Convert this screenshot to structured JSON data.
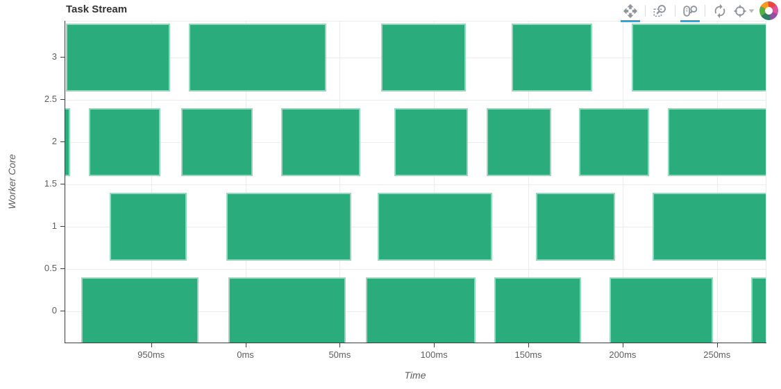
{
  "header": {
    "title": "Task Stream"
  },
  "toolbar": {
    "active_color": "#29a8e1",
    "icon_color": "#8e9499",
    "tools": [
      {
        "id": "pan",
        "label": "Pan",
        "active": true
      },
      {
        "id": "box-zoom",
        "label": "Box Zoom",
        "active": false
      },
      {
        "id": "wheel-zoom",
        "label": "Wheel Zoom",
        "active": true
      },
      {
        "id": "reset",
        "label": "Reset",
        "active": false
      },
      {
        "id": "hover",
        "label": "Hover",
        "active": false,
        "has_dropdown": true
      }
    ],
    "logo": "bokeh-logo"
  },
  "chart_data": {
    "type": "bar",
    "title": "Task Stream",
    "xlabel": "Time",
    "ylabel": "Worker Core",
    "grid": true,
    "bar_color": "#2bac7c",
    "bar_height_units": 0.8,
    "x_range_ms": [
      -96,
      277
    ],
    "y_range": [
      -0.38,
      3.43
    ],
    "x_ticks": [
      {
        "value": -50,
        "label": "950ms"
      },
      {
        "value": 0,
        "label": "0ms"
      },
      {
        "value": 50,
        "label": "50ms"
      },
      {
        "value": 100,
        "label": "100ms"
      },
      {
        "value": 150,
        "label": "150ms"
      },
      {
        "value": 200,
        "label": "200ms"
      },
      {
        "value": 250,
        "label": "250ms"
      }
    ],
    "y_ticks": [
      {
        "value": 0,
        "label": "0"
      },
      {
        "value": 0.5,
        "label": "0.5"
      },
      {
        "value": 1,
        "label": "1"
      },
      {
        "value": 1.5,
        "label": "1.5"
      },
      {
        "value": 2,
        "label": "2"
      },
      {
        "value": 2.5,
        "label": "2.5"
      },
      {
        "value": 3,
        "label": "3"
      }
    ],
    "tasks": [
      {
        "core": 3,
        "start_ms": -95,
        "end_ms": -40
      },
      {
        "core": 3,
        "start_ms": -30,
        "end_ms": 43
      },
      {
        "core": 3,
        "start_ms": 72,
        "end_ms": 117
      },
      {
        "core": 3,
        "start_ms": 141,
        "end_ms": 184
      },
      {
        "core": 3,
        "start_ms": 205,
        "end_ms": 277
      },
      {
        "core": 2,
        "start_ms": -97,
        "end_ms": -93
      },
      {
        "core": 2,
        "start_ms": -83,
        "end_ms": -45
      },
      {
        "core": 2,
        "start_ms": -34,
        "end_ms": 4
      },
      {
        "core": 2,
        "start_ms": 19,
        "end_ms": 61
      },
      {
        "core": 2,
        "start_ms": 79,
        "end_ms": 118
      },
      {
        "core": 2,
        "start_ms": 128,
        "end_ms": 162
      },
      {
        "core": 2,
        "start_ms": 177,
        "end_ms": 214
      },
      {
        "core": 2,
        "start_ms": 224,
        "end_ms": 277
      },
      {
        "core": 1,
        "start_ms": -72,
        "end_ms": -31
      },
      {
        "core": 1,
        "start_ms": -10,
        "end_ms": 56
      },
      {
        "core": 1,
        "start_ms": 70,
        "end_ms": 131
      },
      {
        "core": 1,
        "start_ms": 154,
        "end_ms": 196
      },
      {
        "core": 1,
        "start_ms": 216,
        "end_ms": 277
      },
      {
        "core": 0,
        "start_ms": -87,
        "end_ms": -25
      },
      {
        "core": 0,
        "start_ms": -9,
        "end_ms": 53
      },
      {
        "core": 0,
        "start_ms": 64,
        "end_ms": 122
      },
      {
        "core": 0,
        "start_ms": 132,
        "end_ms": 178
      },
      {
        "core": 0,
        "start_ms": 193,
        "end_ms": 248
      },
      {
        "core": 0,
        "start_ms": 268,
        "end_ms": 277
      }
    ]
  }
}
